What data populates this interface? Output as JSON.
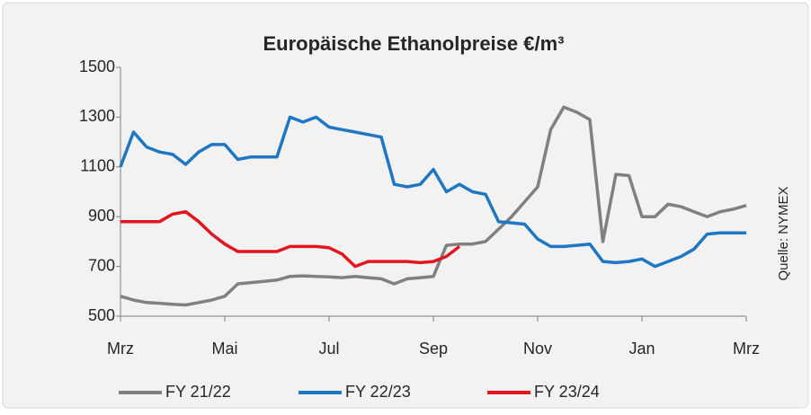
{
  "chart_data": {
    "type": "line",
    "title": "Europäische Ethanolpreise €/m³",
    "source": "Quelle: NYMEX",
    "categories": [
      "Mrz",
      null,
      null,
      null,
      null,
      null,
      null,
      null,
      "Mai",
      null,
      null,
      null,
      null,
      null,
      null,
      null,
      "Jul",
      null,
      null,
      null,
      null,
      null,
      null,
      null,
      "Sep",
      null,
      null,
      null,
      null,
      null,
      null,
      null,
      "Nov",
      null,
      null,
      null,
      null,
      null,
      null,
      null,
      "Jan",
      null,
      null,
      null,
      null,
      null,
      null,
      null,
      "Mrz"
    ],
    "series": [
      {
        "name": "FY 21/22",
        "color": "#808080",
        "values": [
          580,
          565,
          555,
          552,
          548,
          545,
          555,
          565,
          580,
          630,
          635,
          640,
          645,
          660,
          662,
          660,
          658,
          655,
          660,
          655,
          650,
          630,
          650,
          655,
          660,
          785,
          790,
          790,
          800,
          850,
          900,
          960,
          1020,
          1250,
          1340,
          1320,
          1290,
          800,
          1070,
          1065,
          900,
          900,
          950,
          940,
          920,
          900,
          920,
          930,
          945
        ]
      },
      {
        "name": "FY 22/23",
        "color": "#1f77c4",
        "values": [
          1100,
          1240,
          1180,
          1160,
          1150,
          1110,
          1160,
          1190,
          1190,
          1130,
          1140,
          1140,
          1140,
          1300,
          1280,
          1300,
          1260,
          1250,
          1240,
          1230,
          1220,
          1030,
          1020,
          1030,
          1090,
          1000,
          1030,
          1000,
          990,
          880,
          875,
          870,
          810,
          780,
          780,
          785,
          790,
          720,
          715,
          720,
          730,
          700,
          720,
          740,
          770,
          830,
          835,
          835,
          835
        ]
      },
      {
        "name": "FY 23/24",
        "color": "#e3161f",
        "values": [
          880,
          880,
          880,
          880,
          910,
          920,
          880,
          830,
          790,
          760,
          760,
          760,
          760,
          780,
          780,
          780,
          775,
          750,
          700,
          720,
          720,
          720,
          720,
          715,
          720,
          740,
          780,
          null,
          null,
          null,
          null,
          null,
          null,
          null,
          null,
          null,
          null,
          null,
          null,
          null,
          null,
          null,
          null,
          null,
          null,
          null,
          null,
          null,
          null
        ]
      }
    ],
    "ylim": [
      500,
      1500
    ],
    "yticks": [
      500,
      700,
      900,
      1100,
      1300,
      1500
    ],
    "grid": false,
    "legend": "bottom"
  }
}
